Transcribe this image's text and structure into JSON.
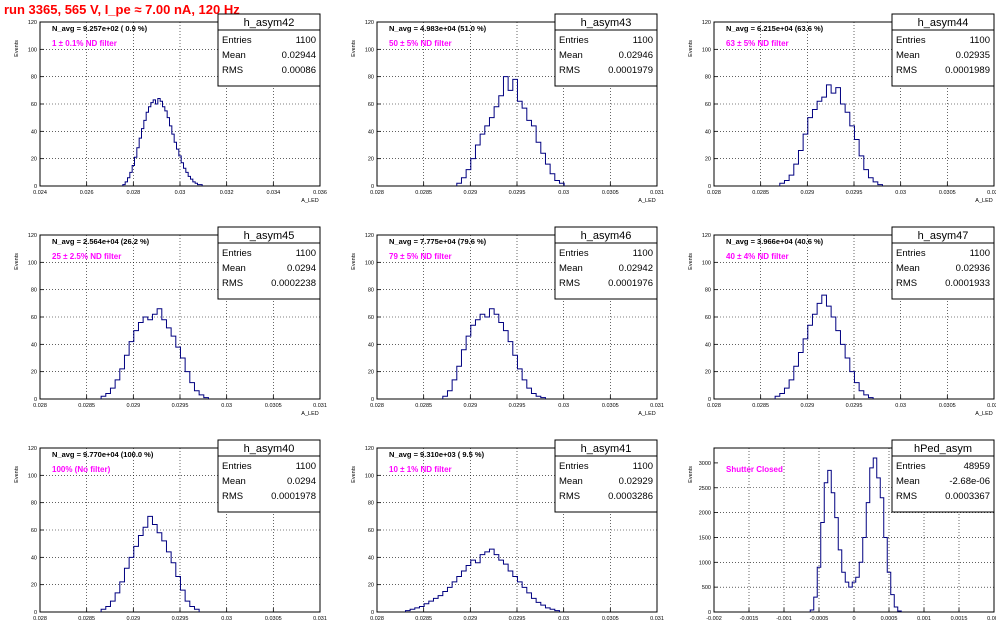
{
  "page_title": "run 3365,   565 V, I_pe ≈ 7.00 nA, 120 Hz",
  "colors": {
    "histogram_line": "#000080",
    "filter_label": "#ff00ff",
    "title": "#ff0000",
    "grid": "#000000"
  },
  "stats_labels": {
    "entries": "Entries",
    "mean": "Mean",
    "rms": "RMS"
  },
  "chart_data": [
    {
      "type": "histogram",
      "name": "h_asym42",
      "ylabel": "Events",
      "xlabel": "A_LED",
      "xlim": [
        0.024,
        0.036
      ],
      "ylim": [
        0,
        120
      ],
      "xticks": [
        "0.024",
        "0.026",
        "0.028",
        "0.03",
        "0.032",
        "0.034",
        "0.036"
      ],
      "yticks": [
        "0",
        "20",
        "40",
        "60",
        "80",
        "100",
        "120"
      ],
      "n_avg_text": "N_avg = 9.257e+02 ( 0.9 %)",
      "filter_text": "1 ± 0.1% ND filter",
      "stats": {
        "entries": "1100",
        "mean": "0.02944",
        "rms": "0.00086"
      },
      "bins": [
        [
          0.0276,
          1
        ],
        [
          0.0277,
          3
        ],
        [
          0.0278,
          6
        ],
        [
          0.0279,
          10
        ],
        [
          0.028,
          15
        ],
        [
          0.0281,
          21
        ],
        [
          0.0282,
          28
        ],
        [
          0.0283,
          35
        ],
        [
          0.0284,
          42
        ],
        [
          0.0285,
          48
        ],
        [
          0.0286,
          54
        ],
        [
          0.0287,
          58
        ],
        [
          0.0288,
          61
        ],
        [
          0.0289,
          63
        ],
        [
          0.029,
          60
        ],
        [
          0.0291,
          64
        ],
        [
          0.0292,
          62
        ],
        [
          0.0293,
          58
        ],
        [
          0.0294,
          55
        ],
        [
          0.0295,
          50
        ],
        [
          0.0296,
          44
        ],
        [
          0.0297,
          38
        ],
        [
          0.0298,
          32
        ],
        [
          0.0299,
          27
        ],
        [
          0.03,
          22
        ],
        [
          0.0301,
          17
        ],
        [
          0.0302,
          13
        ],
        [
          0.0303,
          10
        ],
        [
          0.0304,
          7
        ],
        [
          0.0305,
          5
        ],
        [
          0.0306,
          3
        ],
        [
          0.0307,
          2
        ],
        [
          0.0308,
          1
        ],
        [
          0.0309,
          1
        ]
      ]
    },
    {
      "type": "histogram",
      "name": "h_asym43",
      "ylabel": "Events",
      "xlabel": "A_LED",
      "xlim": [
        0.028,
        0.031
      ],
      "ylim": [
        0,
        120
      ],
      "xticks": [
        "0.028",
        "0.0285",
        "0.029",
        "0.0295",
        "0.03",
        "0.0305",
        "0.031"
      ],
      "yticks": [
        "0",
        "20",
        "40",
        "60",
        "80",
        "100",
        "120"
      ],
      "n_avg_text": "N_avg = 4.983e+04 (51.0 %)",
      "filter_text": "50 ± 5% ND filter",
      "stats": {
        "entries": "1100",
        "mean": "0.02946",
        "rms": "0.0001979"
      },
      "bins": [
        [
          0.02888,
          2
        ],
        [
          0.02893,
          6
        ],
        [
          0.02898,
          12
        ],
        [
          0.02903,
          20
        ],
        [
          0.02908,
          30
        ],
        [
          0.02913,
          38
        ],
        [
          0.02918,
          44
        ],
        [
          0.02923,
          50
        ],
        [
          0.02928,
          58
        ],
        [
          0.02933,
          66
        ],
        [
          0.02938,
          80
        ],
        [
          0.02943,
          70
        ],
        [
          0.02948,
          78
        ],
        [
          0.02953,
          62
        ],
        [
          0.02958,
          57
        ],
        [
          0.02963,
          48
        ],
        [
          0.02968,
          44
        ],
        [
          0.02973,
          32
        ],
        [
          0.02978,
          24
        ],
        [
          0.02983,
          16
        ],
        [
          0.02988,
          9
        ],
        [
          0.02993,
          4
        ],
        [
          0.02998,
          2
        ]
      ]
    },
    {
      "type": "histogram",
      "name": "h_asym44",
      "ylabel": "Events",
      "xlabel": "A_LED",
      "xlim": [
        0.028,
        0.031
      ],
      "ylim": [
        0,
        120
      ],
      "xticks": [
        "0.028",
        "0.0285",
        "0.029",
        "0.0295",
        "0.03",
        "0.0305",
        "0.031"
      ],
      "yticks": [
        "0",
        "20",
        "40",
        "60",
        "80",
        "100",
        "120"
      ],
      "n_avg_text": "N_avg = 6.215e+04 (63.6 %)",
      "filter_text": "63 ± 5% ND filter",
      "stats": {
        "entries": "1100",
        "mean": "0.02935",
        "rms": "0.0001989"
      },
      "bins": [
        [
          0.02873,
          2
        ],
        [
          0.02878,
          4
        ],
        [
          0.02883,
          8
        ],
        [
          0.02888,
          16
        ],
        [
          0.02893,
          26
        ],
        [
          0.02898,
          38
        ],
        [
          0.02903,
          50
        ],
        [
          0.02908,
          56
        ],
        [
          0.02913,
          62
        ],
        [
          0.02918,
          65
        ],
        [
          0.02923,
          74
        ],
        [
          0.02928,
          68
        ],
        [
          0.02933,
          72
        ],
        [
          0.02938,
          60
        ],
        [
          0.02943,
          54
        ],
        [
          0.02948,
          44
        ],
        [
          0.02953,
          34
        ],
        [
          0.02958,
          22
        ],
        [
          0.02963,
          12
        ],
        [
          0.02968,
          6
        ],
        [
          0.02973,
          3
        ],
        [
          0.02978,
          1
        ]
      ]
    },
    {
      "type": "histogram",
      "name": "h_asym45",
      "ylabel": "Events",
      "xlabel": "A_LED",
      "xlim": [
        0.028,
        0.031
      ],
      "ylim": [
        0,
        120
      ],
      "xticks": [
        "0.028",
        "0.0285",
        "0.029",
        "0.0295",
        "0.03",
        "0.0305",
        "0.031"
      ],
      "yticks": [
        "0",
        "20",
        "40",
        "60",
        "80",
        "100",
        "120"
      ],
      "n_avg_text": "N_avg = 2.564e+04 (26.2 %)",
      "filter_text": "25 ± 2.5% ND filter",
      "stats": {
        "entries": "1100",
        "mean": "0.0294",
        "rms": "0.0002238"
      },
      "bins": [
        [
          0.02868,
          2
        ],
        [
          0.02873,
          4
        ],
        [
          0.02878,
          8
        ],
        [
          0.02883,
          14
        ],
        [
          0.02888,
          22
        ],
        [
          0.02893,
          32
        ],
        [
          0.02898,
          42
        ],
        [
          0.02903,
          50
        ],
        [
          0.02908,
          56
        ],
        [
          0.02913,
          60
        ],
        [
          0.02918,
          58
        ],
        [
          0.02923,
          62
        ],
        [
          0.02928,
          66
        ],
        [
          0.02933,
          58
        ],
        [
          0.02938,
          52
        ],
        [
          0.02943,
          46
        ],
        [
          0.02948,
          38
        ],
        [
          0.02953,
          30
        ],
        [
          0.02958,
          20
        ],
        [
          0.02963,
          12
        ],
        [
          0.02968,
          6
        ],
        [
          0.02973,
          3
        ],
        [
          0.02978,
          1
        ]
      ]
    },
    {
      "type": "histogram",
      "name": "h_asym46",
      "ylabel": "Events",
      "xlabel": "A_LED",
      "xlim": [
        0.028,
        0.031
      ],
      "ylim": [
        0,
        120
      ],
      "xticks": [
        "0.028",
        "0.0285",
        "0.029",
        "0.0295",
        "0.03",
        "0.0305",
        "0.031"
      ],
      "yticks": [
        "0",
        "20",
        "40",
        "60",
        "80",
        "100",
        "120"
      ],
      "n_avg_text": "N_avg = 7.775e+04 (79.6 %)",
      "filter_text": "79 ± 5% ND filter",
      "stats": {
        "entries": "1100",
        "mean": "0.02942",
        "rms": "0.0001976"
      },
      "bins": [
        [
          0.02873,
          2
        ],
        [
          0.02878,
          6
        ],
        [
          0.02883,
          14
        ],
        [
          0.02888,
          24
        ],
        [
          0.02893,
          36
        ],
        [
          0.02898,
          46
        ],
        [
          0.02903,
          54
        ],
        [
          0.02908,
          58
        ],
        [
          0.02913,
          62
        ],
        [
          0.02918,
          60
        ],
        [
          0.02923,
          66
        ],
        [
          0.02928,
          62
        ],
        [
          0.02933,
          56
        ],
        [
          0.02938,
          50
        ],
        [
          0.02943,
          42
        ],
        [
          0.02948,
          32
        ],
        [
          0.02953,
          22
        ],
        [
          0.02958,
          14
        ],
        [
          0.02963,
          8
        ],
        [
          0.02968,
          4
        ],
        [
          0.02973,
          2
        ],
        [
          0.02978,
          1
        ]
      ]
    },
    {
      "type": "histogram",
      "name": "h_asym47",
      "ylabel": "Events",
      "xlabel": "A_LED",
      "xlim": [
        0.028,
        0.031
      ],
      "ylim": [
        0,
        120
      ],
      "xticks": [
        "0.028",
        "0.0285",
        "0.029",
        "0.0295",
        "0.03",
        "0.0305",
        "0.031"
      ],
      "yticks": [
        "0",
        "20",
        "40",
        "60",
        "80",
        "100",
        "120"
      ],
      "n_avg_text": "N_avg = 3.966e+04 (40.6 %)",
      "filter_text": "40 ± 4% ND filter",
      "stats": {
        "entries": "1100",
        "mean": "0.02936",
        "rms": "0.0001933"
      },
      "bins": [
        [
          0.02868,
          2
        ],
        [
          0.02873,
          4
        ],
        [
          0.02878,
          8
        ],
        [
          0.02883,
          14
        ],
        [
          0.02888,
          24
        ],
        [
          0.02893,
          34
        ],
        [
          0.02898,
          44
        ],
        [
          0.02903,
          54
        ],
        [
          0.02908,
          62
        ],
        [
          0.02913,
          70
        ],
        [
          0.02918,
          76
        ],
        [
          0.02923,
          68
        ],
        [
          0.02928,
          60
        ],
        [
          0.02933,
          50
        ],
        [
          0.02938,
          40
        ],
        [
          0.02943,
          30
        ],
        [
          0.02948,
          20
        ],
        [
          0.02953,
          12
        ],
        [
          0.02958,
          6
        ],
        [
          0.02963,
          3
        ],
        [
          0.02968,
          1
        ]
      ]
    },
    {
      "type": "histogram",
      "name": "h_asym40",
      "ylabel": "Events",
      "xlabel": "A_LED",
      "xlim": [
        0.028,
        0.031
      ],
      "ylim": [
        0,
        120
      ],
      "xticks": [
        "0.028",
        "0.0285",
        "0.029",
        "0.0295",
        "0.03",
        "0.0305",
        "0.031"
      ],
      "yticks": [
        "0",
        "20",
        "40",
        "60",
        "80",
        "100",
        "120"
      ],
      "n_avg_text": "N_avg = 9.770e+04 (100.0 %)",
      "filter_text": "100% (No filter)",
      "stats": {
        "entries": "1100",
        "mean": "0.0294",
        "rms": "0.0001978"
      },
      "bins": [
        [
          0.02868,
          2
        ],
        [
          0.02873,
          4
        ],
        [
          0.02878,
          8
        ],
        [
          0.02883,
          14
        ],
        [
          0.02888,
          22
        ],
        [
          0.02893,
          32
        ],
        [
          0.02898,
          40
        ],
        [
          0.02903,
          48
        ],
        [
          0.02908,
          56
        ],
        [
          0.02913,
          62
        ],
        [
          0.02918,
          70
        ],
        [
          0.02923,
          64
        ],
        [
          0.02928,
          58
        ],
        [
          0.02933,
          52
        ],
        [
          0.02938,
          44
        ],
        [
          0.02943,
          36
        ],
        [
          0.02948,
          26
        ],
        [
          0.02953,
          16
        ],
        [
          0.02958,
          8
        ],
        [
          0.02963,
          4
        ],
        [
          0.02968,
          2
        ]
      ]
    },
    {
      "type": "histogram",
      "name": "h_asym41",
      "ylabel": "Events",
      "xlabel": "A_LED",
      "xlim": [
        0.028,
        0.031
      ],
      "ylim": [
        0,
        120
      ],
      "xticks": [
        "0.028",
        "0.0285",
        "0.029",
        "0.0295",
        "0.03",
        "0.0305",
        "0.031"
      ],
      "yticks": [
        "0",
        "20",
        "40",
        "60",
        "80",
        "100",
        "120"
      ],
      "n_avg_text": "N_avg = 9.310e+03 ( 9.5 %)",
      "filter_text": "10 ± 1% ND filter",
      "stats": {
        "entries": "1100",
        "mean": "0.02929",
        "rms": "0.0003286"
      },
      "bins": [
        [
          0.02833,
          1
        ],
        [
          0.02838,
          2
        ],
        [
          0.02843,
          3
        ],
        [
          0.02848,
          4
        ],
        [
          0.02853,
          6
        ],
        [
          0.02858,
          8
        ],
        [
          0.02863,
          10
        ],
        [
          0.02868,
          12
        ],
        [
          0.02873,
          15
        ],
        [
          0.02878,
          18
        ],
        [
          0.02883,
          22
        ],
        [
          0.02888,
          26
        ],
        [
          0.02893,
          30
        ],
        [
          0.02898,
          34
        ],
        [
          0.02903,
          38
        ],
        [
          0.02908,
          36
        ],
        [
          0.02913,
          42
        ],
        [
          0.02918,
          44
        ],
        [
          0.02923,
          46
        ],
        [
          0.02928,
          42
        ],
        [
          0.02933,
          38
        ],
        [
          0.02938,
          35
        ],
        [
          0.02943,
          30
        ],
        [
          0.02948,
          26
        ],
        [
          0.02953,
          22
        ],
        [
          0.02958,
          18
        ],
        [
          0.02963,
          14
        ],
        [
          0.02968,
          10
        ],
        [
          0.02973,
          7
        ],
        [
          0.02978,
          5
        ],
        [
          0.02983,
          3
        ],
        [
          0.02988,
          2
        ],
        [
          0.02993,
          1
        ]
      ]
    },
    {
      "type": "histogram",
      "name": "hPed_asym",
      "ylabel": "Events",
      "xlabel": "",
      "xlim": [
        -0.002,
        0.002
      ],
      "ylim": [
        0,
        3300
      ],
      "xticks": [
        "-0.002",
        "-0.0015",
        "-0.001",
        "-0.0005",
        "0",
        "0.0005",
        "0.001",
        "0.0015",
        "0.002"
      ],
      "yticks": [
        "0",
        "500",
        "1000",
        "1500",
        "2000",
        "2500",
        "3000"
      ],
      "n_avg_text": "",
      "filter_text": "Shutter Closed",
      "stats": {
        "entries": "48959",
        "mean": "-2.68e-06",
        "rms": "0.0003367"
      },
      "bins": [
        [
          -0.0006,
          40
        ],
        [
          -0.00055,
          300
        ],
        [
          -0.0005,
          900
        ],
        [
          -0.00045,
          1800
        ],
        [
          -0.0004,
          2600
        ],
        [
          -0.00035,
          2850
        ],
        [
          -0.0003,
          2400
        ],
        [
          -0.00025,
          1900
        ],
        [
          -0.0002,
          1250
        ],
        [
          -0.00015,
          800
        ],
        [
          -0.0001,
          600
        ],
        [
          -5e-05,
          500
        ],
        [
          0,
          600
        ],
        [
          5e-05,
          700
        ],
        [
          0.0001,
          1000
        ],
        [
          0.00015,
          1500
        ],
        [
          0.0002,
          2200
        ],
        [
          0.00025,
          2900
        ],
        [
          0.0003,
          3100
        ],
        [
          0.00035,
          2700
        ],
        [
          0.0004,
          2300
        ],
        [
          0.00045,
          1500
        ],
        [
          0.0005,
          800
        ],
        [
          0.00055,
          350
        ],
        [
          0.0006,
          100
        ],
        [
          0.00065,
          20
        ]
      ]
    }
  ]
}
